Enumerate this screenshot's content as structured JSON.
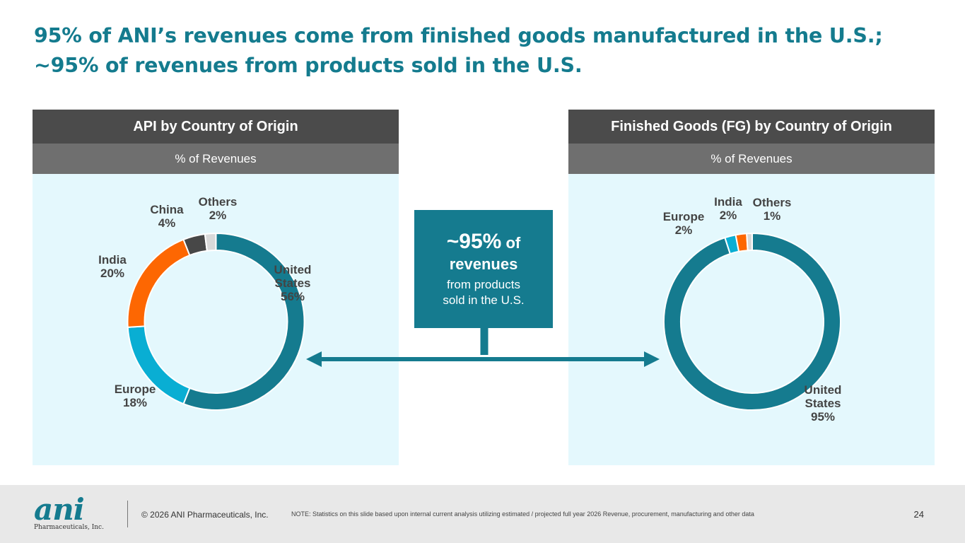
{
  "title": {
    "line1": "95% of ANI’s revenues come from finished goods manufactured in the U.S.;",
    "line2": "~95% of revenues from products sold in the U.S."
  },
  "colors": {
    "title": "#147b8e",
    "united_states": "#157b8f",
    "europe": "#09aed3",
    "india": "#fd6702",
    "china": "#474747",
    "others": "#d9d9d9",
    "panel_bg": "#e4f8fd"
  },
  "callout": {
    "big": "~95%",
    "of": "of",
    "revenues": "revenues",
    "line3": "from products",
    "line4": "sold in the U.S."
  },
  "chart_data": [
    {
      "type": "pie",
      "variant": "donut",
      "title": "API by Country of Origin",
      "subtitle": "% of Revenues",
      "slices": [
        {
          "name_lines": [
            "United",
            "States"
          ],
          "value": 56,
          "color": "united_states"
        },
        {
          "name_lines": [
            "Europe"
          ],
          "value": 18,
          "color": "europe"
        },
        {
          "name_lines": [
            "India"
          ],
          "value": 20,
          "color": "india"
        },
        {
          "name_lines": [
            "China"
          ],
          "value": 4,
          "color": "china"
        },
        {
          "name_lines": [
            "Others"
          ],
          "value": 2,
          "color": "others"
        }
      ]
    },
    {
      "type": "pie",
      "variant": "donut",
      "title": "Finished Goods (FG) by Country of Origin",
      "subtitle": "% of Revenues",
      "slices": [
        {
          "name_lines": [
            "United",
            "States"
          ],
          "value": 95,
          "color": "united_states"
        },
        {
          "name_lines": [
            "Europe"
          ],
          "value": 2,
          "color": "europe"
        },
        {
          "name_lines": [
            "India"
          ],
          "value": 2,
          "color": "india"
        },
        {
          "name_lines": [
            "Others"
          ],
          "value": 1,
          "color": "others"
        }
      ]
    }
  ],
  "footer": {
    "logo_mark": "ani",
    "logo_sub": "Pharmaceuticals, Inc.",
    "copyright": "© 2026 ANI Pharmaceuticals, Inc.",
    "note": "NOTE: Statistics on this slide based upon internal current analysis utilizing estimated / projected full year 2026 Revenue, procurement, manufacturing and other data",
    "page": "24"
  }
}
